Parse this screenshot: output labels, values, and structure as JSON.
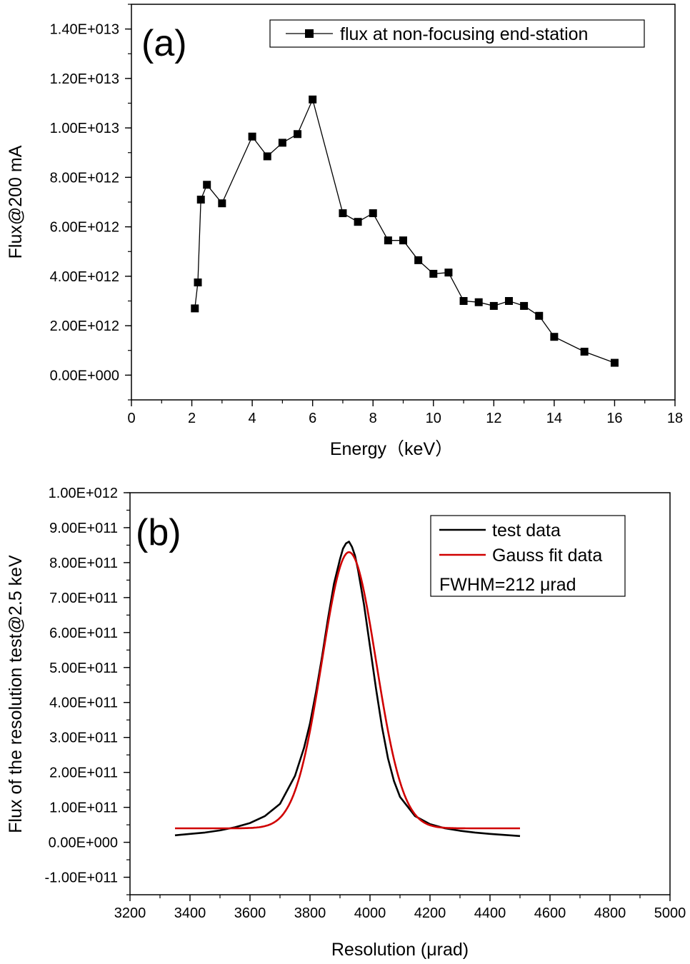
{
  "chart_data": [
    {
      "type": "line",
      "panel_label": "(a)",
      "xlabel": "Energy（keV）",
      "ylabel": "Flux@200 mA",
      "xlim": [
        0,
        18
      ],
      "ylim": [
        -1000000000000.0,
        15000000000000.0
      ],
      "x_ticks": [
        "0",
        "2",
        "4",
        "6",
        "8",
        "10",
        "12",
        "14",
        "16",
        "18"
      ],
      "y_ticks": [
        "0.00E+000",
        "2.00E+012",
        "4.00E+012",
        "6.00E+012",
        "8.00E+012",
        "1.00E+013",
        "1.20E+013",
        "1.40E+013"
      ],
      "legend": "top-right",
      "series": [
        {
          "name": "flux at non-focusing end-station",
          "color": "#000000",
          "marker": "square",
          "x": [
            2.1,
            2.2,
            2.3,
            2.5,
            3,
            4,
            4.5,
            5,
            5.5,
            6,
            7,
            7.5,
            8,
            8.5,
            9,
            9.5,
            10,
            10.5,
            11,
            11.5,
            12,
            12.5,
            13,
            13.5,
            14,
            15,
            16
          ],
          "y": [
            2700000000000.0,
            3750000000000.0,
            7100000000000.0,
            7700000000000.0,
            6950000000000.0,
            9650000000000.0,
            8850000000000.0,
            9400000000000.0,
            9750000000000.0,
            11150000000000.0,
            6550000000000.0,
            6200000000000.0,
            6550000000000.0,
            5450000000000.0,
            5450000000000.0,
            4650000000000.0,
            4100000000000.0,
            4150000000000.0,
            3000000000000.0,
            2950000000000.0,
            2800000000000.0,
            3000000000000.0,
            2800000000000.0,
            2400000000000.0,
            1550000000000.0,
            950000000000.0,
            500000000000.0
          ]
        }
      ]
    },
    {
      "type": "line",
      "panel_label": "(b)",
      "xlabel": "Resolution (μrad)",
      "ylabel": "Flux of the resolution test@2.5 keV",
      "xlim": [
        3200,
        5000
      ],
      "ylim": [
        -150000000000.0,
        1000000000000.0
      ],
      "x_ticks": [
        "3200",
        "3400",
        "3600",
        "3800",
        "4000",
        "4200",
        "4400",
        "4600",
        "4800",
        "5000"
      ],
      "y_ticks": [
        "-1.00E+011",
        "0.00E+000",
        "1.00E+011",
        "2.00E+011",
        "3.00E+011",
        "4.00E+011",
        "5.00E+011",
        "6.00E+011",
        "7.00E+011",
        "8.00E+011",
        "9.00E+011",
        "1.00E+012"
      ],
      "legend": "top-right",
      "annotation": "FWHM=212 μrad",
      "series": [
        {
          "name": "test data",
          "color": "#000000",
          "x": [
            3350,
            3400,
            3450,
            3500,
            3550,
            3600,
            3650,
            3700,
            3750,
            3780,
            3800,
            3820,
            3840,
            3860,
            3880,
            3900,
            3910,
            3920,
            3930,
            3940,
            3950,
            3960,
            3980,
            4000,
            4020,
            4040,
            4060,
            4080,
            4100,
            4150,
            4200,
            4250,
            4300,
            4350,
            4400,
            4450,
            4500
          ],
          "y": [
            20000000000.0,
            24000000000.0,
            28000000000.0,
            34000000000.0,
            43000000000.0,
            55000000000.0,
            75000000000.0,
            110000000000.0,
            190000000000.0,
            270000000000.0,
            340000000000.0,
            430000000000.0,
            530000000000.0,
            640000000000.0,
            740000000000.0,
            810000000000.0,
            840000000000.0,
            855000000000.0,
            860000000000.0,
            845000000000.0,
            820000000000.0,
            780000000000.0,
            680000000000.0,
            560000000000.0,
            440000000000.0,
            330000000000.0,
            240000000000.0,
            175000000000.0,
            130000000000.0,
            75000000000.0,
            52000000000.0,
            40000000000.0,
            33000000000.0,
            28000000000.0,
            24000000000.0,
            21000000000.0,
            18000000000.0
          ]
        },
        {
          "name": "Gauss fit data",
          "color": "#d00000",
          "gauss": {
            "y0": 40000000000.0,
            "amplitude": 790000000000.0,
            "center": 3930,
            "fwhm": 212
          }
        }
      ]
    }
  ]
}
